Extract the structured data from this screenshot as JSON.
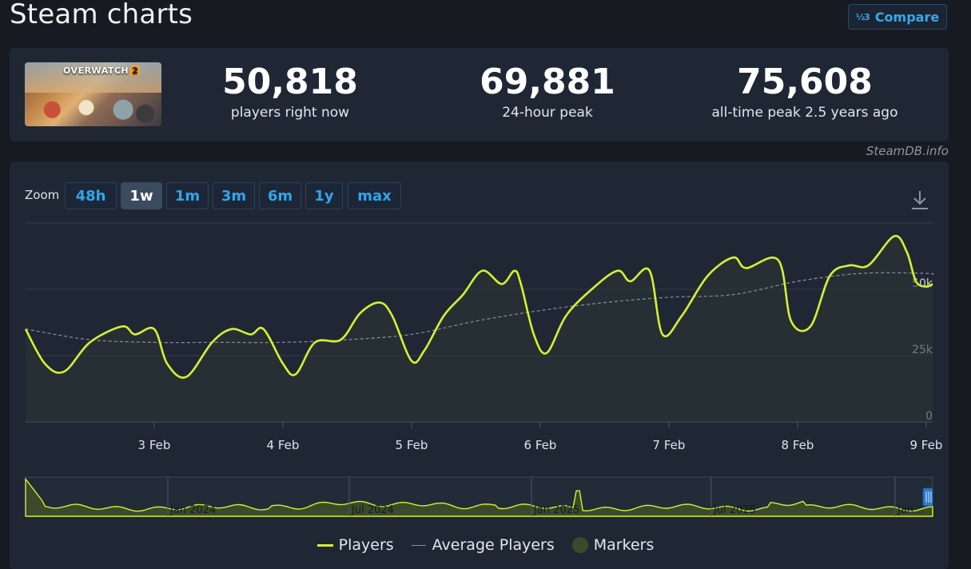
{
  "header": {
    "title": "Steam charts",
    "compare_label": "Compare",
    "compare_icon": "½3"
  },
  "game": {
    "thumb_logo": "OVERWATCH",
    "thumb_logo_suffix": "2"
  },
  "stats": [
    {
      "value": "50,818",
      "label": "players right now"
    },
    {
      "value": "69,881",
      "label": "24-hour peak"
    },
    {
      "value": "75,608",
      "label": "all-time peak 2.5 years ago"
    }
  ],
  "credit": "SteamDB.info",
  "zoom": {
    "label": "Zoom",
    "options": [
      "48h",
      "1w",
      "1m",
      "3m",
      "6m",
      "1y",
      "max"
    ],
    "selected": "1w"
  },
  "colors": {
    "players": "#d4f22b",
    "average": "#8a919b",
    "markers": "#3b4a2a",
    "accent": "#30a6eb",
    "panel": "#1f2735"
  },
  "chart_data": {
    "type": "line",
    "x_labels": [
      "3 Feb",
      "4 Feb",
      "5 Feb",
      "6 Feb",
      "7 Feb",
      "8 Feb",
      "9 Feb"
    ],
    "y_ticks": [
      "0",
      "25k",
      "50k"
    ],
    "ylim": [
      0,
      75000
    ],
    "grid": true,
    "legend": "bottom",
    "series": [
      {
        "name": "Players",
        "x": [
          2.0,
          2.15,
          2.3,
          2.5,
          2.75,
          2.85,
          3.0,
          3.1,
          3.25,
          3.45,
          3.6,
          3.75,
          3.85,
          4.0,
          4.1,
          4.25,
          4.45,
          4.6,
          4.75,
          4.85,
          5.0,
          5.1,
          5.25,
          5.4,
          5.55,
          5.7,
          5.8,
          5.85,
          5.95,
          6.05,
          6.2,
          6.4,
          6.6,
          6.7,
          6.85,
          6.95,
          7.1,
          7.3,
          7.5,
          7.6,
          7.85,
          7.95,
          8.1,
          8.25,
          8.4,
          8.55,
          8.75,
          8.85,
          8.92,
          9.0,
          9.05
        ],
        "y": [
          35000,
          22000,
          19000,
          30000,
          36000,
          33000,
          35000,
          22000,
          17000,
          30000,
          35000,
          33000,
          35000,
          22000,
          18000,
          30000,
          31000,
          41000,
          45000,
          40000,
          23000,
          27000,
          40000,
          48000,
          57000,
          52000,
          57000,
          52000,
          33000,
          26000,
          40000,
          50000,
          57000,
          53000,
          57000,
          33000,
          40000,
          55000,
          62000,
          58000,
          61000,
          38000,
          36000,
          55000,
          59000,
          59000,
          70000,
          64000,
          53000,
          51000,
          52000
        ]
      },
      {
        "name": "Average Players",
        "x": [
          2.0,
          2.5,
          3.0,
          3.5,
          4.0,
          4.5,
          5.0,
          5.5,
          6.0,
          6.5,
          7.0,
          7.5,
          8.0,
          8.5,
          9.0,
          9.05
        ],
        "y": [
          35000,
          31000,
          30000,
          30000,
          30000,
          31000,
          33000,
          38000,
          42000,
          45000,
          47000,
          48000,
          53000,
          56000,
          56000,
          55500
        ]
      }
    ],
    "navigator_labels": [
      "Jan 2024",
      "Jul 2024",
      "Jan 2025",
      "Jul 2025",
      "Jan…"
    ]
  },
  "legend": [
    {
      "label": "Players"
    },
    {
      "label": "Average Players"
    },
    {
      "label": "Markers"
    }
  ]
}
